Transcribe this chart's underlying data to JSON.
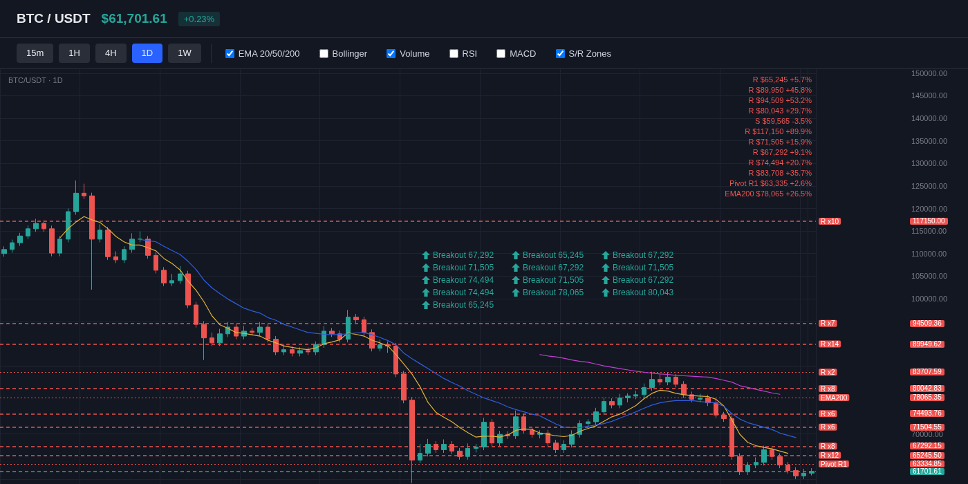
{
  "chart_data": {
    "type": "candlestick",
    "title": "BTC / USDT",
    "subtitle": "$61,701.61",
    "categories": [
      null,
      null,
      null,
      null,
      null,
      null,
      null,
      null,
      null,
      null,
      null,
      null,
      null,
      null,
      null,
      null,
      null,
      null,
      null,
      null,
      null,
      null,
      null,
      null,
      null,
      null,
      null,
      null,
      null,
      null,
      null,
      null,
      null,
      null,
      null,
      null,
      null,
      null,
      null,
      null,
      null,
      null,
      null,
      null,
      null,
      null,
      null,
      null,
      null,
      null,
      null,
      null,
      null,
      null,
      null,
      null,
      null,
      null,
      null,
      null,
      null,
      null,
      null,
      null,
      null,
      null,
      null,
      null,
      null,
      null,
      null,
      null,
      null,
      null,
      null,
      null,
      null,
      null,
      null,
      null,
      null,
      null,
      null,
      null,
      null,
      null,
      null,
      null,
      null,
      null,
      null,
      null,
      null,
      null,
      null,
      null,
      null,
      null,
      null,
      null,
      null,
      null
    ],
    "ohlc": [
      [
        110000,
        111600,
        109300,
        110900
      ],
      [
        110900,
        113100,
        110200,
        112400
      ],
      [
        112400,
        114600,
        111700,
        113900
      ],
      [
        113900,
        116200,
        113200,
        115500
      ],
      [
        115500,
        117700,
        114800,
        116700
      ],
      [
        116700,
        117400,
        114800,
        115500
      ],
      [
        115500,
        116200,
        109400,
        110100
      ],
      [
        110100,
        113900,
        109400,
        113200
      ],
      [
        113200,
        120000,
        112500,
        119300
      ],
      [
        119300,
        126200,
        118600,
        123400
      ],
      [
        123400,
        125500,
        122100,
        122800
      ],
      [
        122800,
        123500,
        102000,
        113200
      ],
      [
        113200,
        116500,
        112500,
        115200
      ],
      [
        115200,
        115900,
        108600,
        109300
      ],
      [
        109300,
        110500,
        107900,
        108600
      ],
      [
        108600,
        111600,
        107900,
        110900
      ],
      [
        110900,
        114500,
        110200,
        113200
      ],
      [
        113200,
        114900,
        112500,
        113200
      ],
      [
        113200,
        113900,
        108900,
        109600
      ],
      [
        109600,
        110300,
        105600,
        106300
      ],
      [
        106300,
        107000,
        102800,
        103500
      ],
      [
        103500,
        105500,
        102800,
        104000
      ],
      [
        104000,
        107200,
        103300,
        105500
      ],
      [
        105500,
        106200,
        97900,
        98600
      ],
      [
        98600,
        99300,
        93600,
        94300
      ],
      [
        94300,
        95000,
        86400,
        91300
      ],
      [
        91300,
        92500,
        89500,
        90200
      ],
      [
        90200,
        93300,
        89500,
        92200
      ],
      [
        92200,
        94800,
        91500,
        93700
      ],
      [
        93700,
        94400,
        91000,
        91700
      ],
      [
        91700,
        94000,
        91000,
        92800
      ],
      [
        92800,
        93500,
        91800,
        92500
      ],
      [
        92500,
        94800,
        91800,
        93700
      ],
      [
        93700,
        94400,
        90300,
        91000
      ],
      [
        91000,
        91700,
        87500,
        88200
      ],
      [
        88200,
        89800,
        87500,
        88700
      ],
      [
        88700,
        89400,
        87200,
        87900
      ],
      [
        87900,
        89200,
        87200,
        88500
      ],
      [
        88500,
        89200,
        87500,
        88200
      ],
      [
        88200,
        90500,
        87500,
        89800
      ],
      [
        89800,
        93900,
        89100,
        92800
      ],
      [
        92800,
        93500,
        91500,
        92200
      ],
      [
        92200,
        92900,
        90300,
        91000
      ],
      [
        91000,
        97500,
        90300,
        95900
      ],
      [
        95900,
        96600,
        94600,
        95300
      ],
      [
        95300,
        96000,
        91800,
        92500
      ],
      [
        92500,
        93200,
        88300,
        89000
      ],
      [
        89000,
        90900,
        88300,
        89800
      ],
      [
        89800,
        90500,
        88000,
        89500
      ],
      [
        89500,
        90200,
        82600,
        83300
      ],
      [
        83300,
        84000,
        76800,
        77500
      ],
      [
        77500,
        78200,
        59100,
        64200
      ],
      [
        64200,
        67800,
        63500,
        65700
      ],
      [
        65700,
        68900,
        65000,
        67700
      ],
      [
        67700,
        68400,
        65800,
        66500
      ],
      [
        66500,
        68800,
        65800,
        67700
      ],
      [
        67700,
        68400,
        65500,
        66200
      ],
      [
        66200,
        66900,
        64300,
        65000
      ],
      [
        65000,
        67900,
        64300,
        66800
      ],
      [
        66800,
        67800,
        65900,
        67100
      ],
      [
        67100,
        73600,
        66400,
        72600
      ],
      [
        72600,
        73300,
        67300,
        68000
      ],
      [
        68000,
        70700,
        67300,
        69900
      ],
      [
        69900,
        70600,
        68900,
        69600
      ],
      [
        69600,
        75200,
        68900,
        73800
      ],
      [
        73800,
        74500,
        70100,
        70800
      ],
      [
        70800,
        71500,
        69200,
        69900
      ],
      [
        69900,
        70800,
        69000,
        70200
      ],
      [
        70200,
        70900,
        67300,
        68000
      ],
      [
        68000,
        68700,
        65800,
        66500
      ],
      [
        66500,
        68600,
        65800,
        67700
      ],
      [
        67700,
        70800,
        67000,
        69900
      ],
      [
        69900,
        73000,
        69200,
        72300
      ],
      [
        72300,
        73300,
        71400,
        72700
      ],
      [
        72700,
        75800,
        72000,
        74900
      ],
      [
        74900,
        78100,
        74200,
        77200
      ],
      [
        77200,
        77900,
        75700,
        76400
      ],
      [
        76400,
        78900,
        75700,
        78000
      ],
      [
        78000,
        79000,
        77000,
        78400
      ],
      [
        78400,
        79600,
        77700,
        78700
      ],
      [
        78700,
        81200,
        78000,
        80300
      ],
      [
        80300,
        83800,
        79600,
        82100
      ],
      [
        82100,
        83200,
        80800,
        81500
      ],
      [
        81500,
        83700,
        80800,
        82600
      ],
      [
        82600,
        83300,
        80300,
        81000
      ],
      [
        81000,
        81700,
        78000,
        78700
      ],
      [
        78700,
        79400,
        77000,
        77700
      ],
      [
        77700,
        78900,
        77000,
        78000
      ],
      [
        78000,
        78700,
        76200,
        76900
      ],
      [
        76900,
        77600,
        73500,
        74200
      ],
      [
        74200,
        74900,
        72700,
        73400
      ],
      [
        73400,
        74100,
        64300,
        65000
      ],
      [
        65000,
        65700,
        60900,
        61600
      ],
      [
        61600,
        63800,
        60900,
        63100
      ],
      [
        63100,
        64800,
        62400,
        63700
      ],
      [
        63700,
        67400,
        63000,
        66500
      ],
      [
        66500,
        67200,
        64300,
        65000
      ],
      [
        65000,
        65700,
        62400,
        63100
      ],
      [
        63100,
        63800,
        61200,
        61900
      ],
      [
        61900,
        62600,
        60000,
        60700
      ],
      [
        60700,
        62300,
        60000,
        61300
      ],
      [
        61300,
        62400,
        60800,
        61701.61
      ]
    ],
    "series": [
      {
        "type": "line",
        "color": "#e0b23a",
        "values": [
          null,
          null,
          null,
          null,
          null,
          null,
          null,
          113500,
          115500,
          117000,
          118200,
          117500,
          116900,
          115500,
          113800,
          112600,
          111900,
          111900,
          111300,
          110600,
          108900,
          107800,
          106400,
          103900,
          101900,
          99300,
          96200,
          94200,
          93400,
          92500,
          92300,
          92000,
          91700,
          90800,
          90200,
          89500,
          89200,
          88900,
          88700,
          89100,
          90000,
          90400,
          90900,
          92400,
          92100,
          91700,
          90800,
          90200,
          89500,
          87600,
          85500,
          83300,
          80500,
          77000,
          74800,
          73700,
          72700,
          71400,
          70300,
          69300,
          69500,
          69500,
          69300,
          69800,
          70800,
          71100,
          71000,
          70200,
          69900,
          69600,
          69400,
          69700,
          70600,
          71200,
          71800,
          72800,
          73800,
          74400,
          75300,
          76300,
          77800,
          79000,
          79700,
          79500,
          79000,
          78700,
          78500,
          78400,
          78300,
          77700,
          76200,
          73100,
          69900,
          68100,
          67400,
          67000,
          66700,
          66200,
          65700,
          null,
          null,
          null
        ]
      },
      {
        "type": "line",
        "color": "#2f5fe0",
        "values": [
          null,
          null,
          null,
          null,
          null,
          null,
          null,
          null,
          null,
          null,
          null,
          null,
          null,
          null,
          null,
          null,
          null,
          113100,
          112900,
          112600,
          111600,
          110700,
          109800,
          108300,
          106500,
          104100,
          102400,
          101100,
          99900,
          98900,
          97900,
          97300,
          96800,
          95800,
          95200,
          94300,
          93700,
          93100,
          92500,
          92300,
          92100,
          92000,
          92100,
          92200,
          92400,
          92500,
          92000,
          91400,
          90700,
          89800,
          87900,
          86700,
          85600,
          84500,
          83400,
          82300,
          81400,
          80600,
          79600,
          78800,
          78000,
          77400,
          76800,
          76000,
          75400,
          74900,
          74400,
          74000,
          73100,
          72200,
          71500,
          71400,
          71400,
          71700,
          72000,
          72300,
          72800,
          73500,
          74200,
          74900,
          75700,
          76400,
          76900,
          77200,
          77400,
          77400,
          77400,
          77200,
          77000,
          76900,
          76100,
          74500,
          73300,
          72500,
          72000,
          71500,
          71000,
          70200,
          69700,
          69200,
          null,
          null
        ]
      },
      {
        "type": "line",
        "color": "#c23ed6",
        "values": [
          null,
          null,
          null,
          null,
          null,
          null,
          null,
          null,
          null,
          null,
          null,
          null,
          null,
          null,
          null,
          null,
          null,
          null,
          null,
          null,
          null,
          null,
          null,
          null,
          null,
          null,
          null,
          null,
          null,
          null,
          null,
          null,
          null,
          null,
          null,
          null,
          null,
          null,
          null,
          null,
          null,
          null,
          null,
          null,
          null,
          null,
          null,
          null,
          null,
          null,
          null,
          null,
          null,
          null,
          null,
          null,
          null,
          null,
          null,
          null,
          null,
          null,
          null,
          null,
          null,
          null,
          null,
          87600,
          87300,
          87100,
          86800,
          86400,
          86100,
          85900,
          85500,
          85100,
          84800,
          84500,
          84200,
          83900,
          83700,
          83500,
          83300,
          83200,
          83000,
          82900,
          82800,
          82700,
          82600,
          82300,
          81900,
          81500,
          80700,
          80300,
          79900,
          79500,
          79100,
          78800,
          null,
          null,
          null,
          null
        ]
      }
    ],
    "ylim": [
      58900,
      150900
    ],
    "yticks": [
      {
        "value": 60000,
        "label": null
      },
      {
        "value": 70000,
        "label": "70000.00"
      },
      {
        "value": 85000,
        "label": null
      },
      {
        "value": 95000,
        "label": null
      },
      {
        "value": 100000,
        "label": "100000.00"
      },
      {
        "value": 105000,
        "label": "105000.00"
      },
      {
        "value": 110000,
        "label": "110000.00"
      },
      {
        "value": 115000,
        "label": "115000.00"
      },
      {
        "value": 120000,
        "label": "120000.00"
      },
      {
        "value": 125000,
        "label": "125000.00"
      },
      {
        "value": 130000,
        "label": "130000.00"
      },
      {
        "value": 135000,
        "label": "135000.00"
      },
      {
        "value": 140000,
        "label": "140000.00"
      },
      {
        "value": 145000,
        "label": "145000.00"
      },
      {
        "value": 150000,
        "label": "150000.00"
      }
    ],
    "ref_lines": [
      {
        "axis": "y",
        "value": 117150,
        "label": "R x10",
        "color": "#ef5350",
        "line_style": "dashed"
      },
      {
        "axis": "y",
        "value": 94509.36,
        "label": "R x7",
        "color": "#ef5350",
        "line_style": "dashed"
      },
      {
        "axis": "y",
        "value": 89949.62,
        "label": "R x14",
        "color": "#ef5350",
        "line_style": "dashed"
      },
      {
        "axis": "y",
        "value": 83707.59,
        "label": "R x2",
        "color": "#ef5350",
        "line_style": "dotted"
      },
      {
        "axis": "y",
        "value": 80042.83,
        "label": "R x8",
        "color": "#ef5350",
        "line_style": "dashed"
      },
      {
        "axis": "y",
        "value": 78065.35,
        "label": "EMA200",
        "color": "#ef5350",
        "line_style": "dotted"
      },
      {
        "axis": "y",
        "value": 74493.76,
        "label": "R x6",
        "color": "#ef5350",
        "line_style": "dashed"
      },
      {
        "axis": "y",
        "value": 71504.55,
        "label": "R x6",
        "color": "#ef5350",
        "line_style": "dashed"
      },
      {
        "axis": "y",
        "value": 67292.15,
        "label": "R x8",
        "color": "#ef5350",
        "line_style": "dashed"
      },
      {
        "axis": "y",
        "value": 65245.5,
        "label": "R x12",
        "color": "#ef5350",
        "line_style": "dashed"
      },
      {
        "axis": "y",
        "value": 63334.85,
        "label": "Pivot R1",
        "color": "#ef5350",
        "line_style": "dotted"
      },
      {
        "axis": "y",
        "value": 61701.61,
        "label": null,
        "color": "#26a69a",
        "line_style": "dashed"
      }
    ],
    "annotations": [
      "+0.23%",
      "15m",
      "1H",
      "4H",
      "1D",
      "1W",
      "EMA 20/50/200",
      "Bollinger",
      "Volume",
      "RSI",
      "MACD",
      "S/R Zones",
      "BTC/USDT · 1D",
      "R $65,245 +5.7%",
      "R $89,950 +45.8%",
      "R $94,509 +53.2%",
      "R $80,043 +29.7%",
      "S $59,565 -3.5%",
      "R $117,150 +89.9%",
      "R $71,505 +15.9%",
      "R $67,292 +9.1%",
      "R $74,494 +20.7%",
      "R $83,708 +35.7%",
      "Pivot R1 $63,335 +2.6%",
      "EMA200 $78,065 +26.5%",
      "117150.00",
      "94509.36",
      "89949.62",
      "83707.59",
      "80042.83",
      "78065.35",
      "74493.76",
      "71504.55",
      "67292.15",
      "65245.50",
      "63334.85",
      "61701.61",
      "Breakout 67,292",
      "Breakout 65,245",
      "Breakout 67,292",
      "Breakout 71,505",
      "Breakout 67,292",
      "Breakout 71,505",
      "Breakout 74,494",
      "Breakout 71,505",
      "Breakout 67,292",
      "Breakout 74,494",
      "Breakout 78,065",
      "Breakout 80,043",
      "Breakout 65,245"
    ],
    "grid": true,
    "marker": "none",
    "line_style": "solid",
    "tick_labels": "y"
  }
}
